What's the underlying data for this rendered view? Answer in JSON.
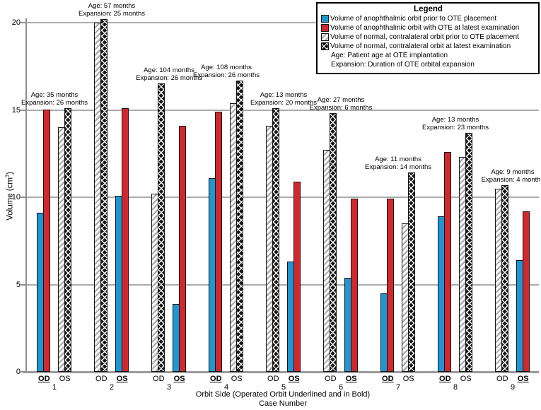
{
  "figure": {
    "ylabel_pre": "Volume (cm",
    "ylabel_sup": "3",
    "ylabel_post": ")"
  },
  "legend": {
    "title": "Legend",
    "notes": [
      "Age: Patient age at OTE implantation",
      "Expansion: Duration of OTE orbital expansion"
    ]
  },
  "colors": {
    "blue": "#1e96d2",
    "red": "#d2282d",
    "black_bar": "#171717",
    "hatch_gray": "#aeaeae",
    "gridline": "#ababab",
    "axis": "#9a9a9a"
  },
  "chart_data": {
    "type": "bar",
    "title": "",
    "ylabel": "Volume (cm3)",
    "xlabel": "Orbit Side (Operated Orbit Underlined and in Bold)",
    "xlabel2": "Case Number",
    "ylim": [
      0,
      20.2
    ],
    "yticks": [
      0,
      5,
      10,
      15,
      20
    ],
    "grid": "horizontal",
    "legend_position": "top-right",
    "series": [
      {
        "key": "anophthalmic_prior",
        "style": "blue-solid",
        "label": "Volume of anophthalmic orbit prior to OTE placement"
      },
      {
        "key": "anophthalmic_latest",
        "style": "red-solid",
        "label": "Volume of anophthalmic orbit with OTE at latest examination"
      },
      {
        "key": "normal_prior",
        "style": "white-hatch",
        "label": "Volume of normal, contralateral orbit prior to OTE placement"
      },
      {
        "key": "normal_latest",
        "style": "black-crosshatch",
        "label": "Volume of normal, contralateral orbit at latest examination"
      }
    ],
    "cases": [
      {
        "case": "1",
        "age": "Age: 35 months",
        "expansion": "Expansion: 26 months",
        "sides": [
          {
            "label": "OD",
            "operated": true,
            "prior": 9.1,
            "latest": 15.0
          },
          {
            "label": "OS",
            "operated": false,
            "prior": 14.0,
            "latest": 15.1
          }
        ]
      },
      {
        "case": "2",
        "age": "Age: 57 months",
        "expansion": "Expansion: 25 months",
        "sides": [
          {
            "label": "OD",
            "operated": false,
            "prior": 20.0,
            "latest": 20.2
          },
          {
            "label": "OS",
            "operated": true,
            "prior": 10.1,
            "latest": 15.1
          }
        ]
      },
      {
        "case": "3",
        "age": "Age: 104 months",
        "expansion": "Expansion: 26 months",
        "sides": [
          {
            "label": "OD",
            "operated": false,
            "prior": 10.2,
            "latest": 16.5
          },
          {
            "label": "OS",
            "operated": true,
            "prior": 3.9,
            "latest": 14.1
          }
        ]
      },
      {
        "case": "4",
        "age": "Age: 108 months",
        "expansion": "Expansion: 26 months",
        "sides": [
          {
            "label": "OD",
            "operated": true,
            "prior": 11.1,
            "latest": 14.9
          },
          {
            "label": "OS",
            "operated": false,
            "prior": 15.4,
            "latest": 16.7
          }
        ]
      },
      {
        "case": "5",
        "age": "Age: 13 months",
        "expansion": "Expansion: 20 months",
        "sides": [
          {
            "label": "OD",
            "operated": false,
            "prior": 14.1,
            "latest": 15.1
          },
          {
            "label": "OS",
            "operated": true,
            "prior": 6.3,
            "latest": 10.9
          }
        ]
      },
      {
        "case": "6",
        "age": "Age: 27 months",
        "expansion": "Expansion: 6 months",
        "sides": [
          {
            "label": "OD",
            "operated": false,
            "prior": 12.7,
            "latest": 14.8
          },
          {
            "label": "OS",
            "operated": true,
            "prior": 5.4,
            "latest": 9.9
          }
        ]
      },
      {
        "case": "7",
        "age": "Age: 11 months",
        "expansion": "Expansion: 14 months",
        "sides": [
          {
            "label": "OD",
            "operated": true,
            "prior": 4.5,
            "latest": 9.9
          },
          {
            "label": "OS",
            "operated": false,
            "prior": 8.5,
            "latest": 11.4
          }
        ]
      },
      {
        "case": "8",
        "age": "Age: 13 months",
        "expansion": "Expansion: 23 months",
        "sides": [
          {
            "label": "OD",
            "operated": true,
            "prior": 8.9,
            "latest": 12.6
          },
          {
            "label": "OS",
            "operated": false,
            "prior": 12.3,
            "latest": 13.7
          }
        ]
      },
      {
        "case": "9",
        "age": "Age: 9 months",
        "expansion": "Expansion: 4 months",
        "sides": [
          {
            "label": "OD",
            "operated": false,
            "prior": 10.5,
            "latest": 10.7
          },
          {
            "label": "OS",
            "operated": true,
            "prior": 6.4,
            "latest": 9.2
          }
        ]
      }
    ]
  }
}
